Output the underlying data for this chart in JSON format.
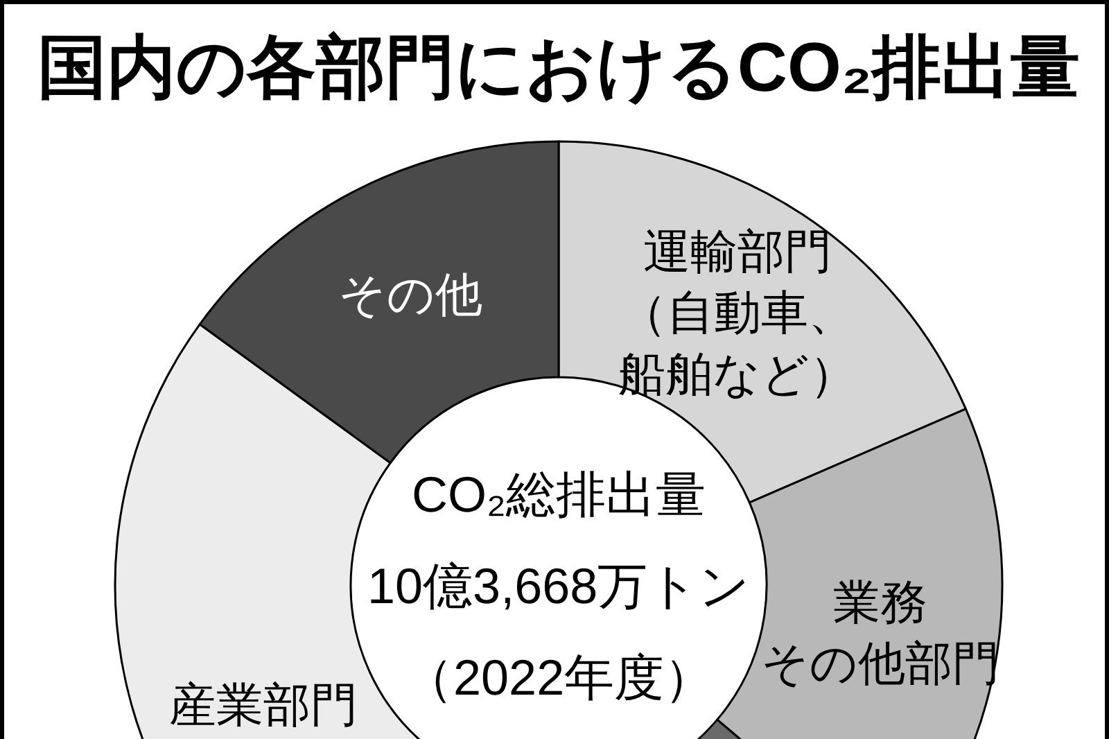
{
  "chart_data": {
    "type": "donut",
    "title": "国内の各部門におけるCO₂排出量",
    "categories": [
      "運輸部門（自動車、船舶など）",
      "業務その他部門",
      null,
      "産業部門",
      "その他"
    ],
    "values": [
      18.5,
      17.7,
      15.0,
      33.8,
      15.0
    ],
    "colors": [
      "#d6d6d6",
      "#b8b8b8",
      "#6a6a6a",
      "#ececec",
      "#4a4a4a"
    ],
    "annotations": [
      "CO₂総排出量",
      "10億3,668万トン",
      "（2022年度）"
    ]
  }
}
